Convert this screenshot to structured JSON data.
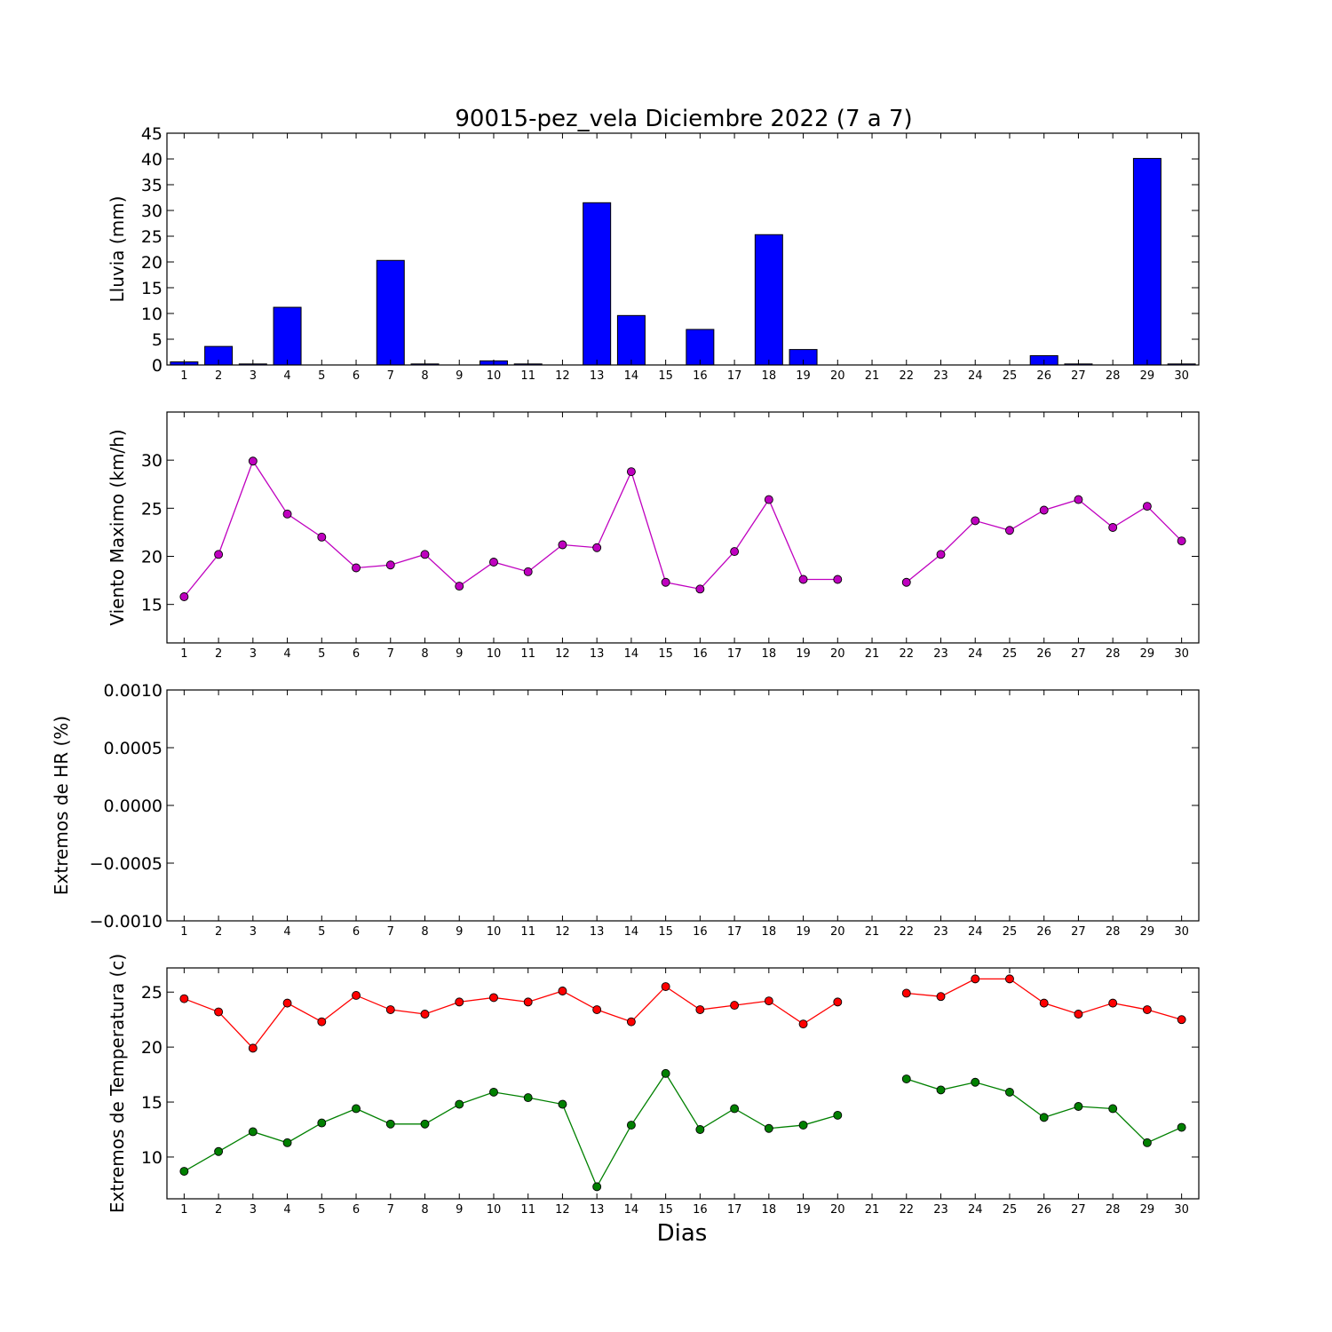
{
  "chart_data": [
    {
      "type": "bar",
      "title": "90015-pez_vela Diciembre 2022  (7 a 7)",
      "ylabel": "Lluvia (mm)",
      "xlabel": "",
      "ylim": [
        0,
        45
      ],
      "yticks": [
        0,
        5,
        10,
        15,
        20,
        25,
        30,
        35,
        40,
        45
      ],
      "xlim": [
        0.5,
        30.5
      ],
      "categories": [
        "1",
        "2",
        "3",
        "4",
        "5",
        "6",
        "7",
        "8",
        "9",
        "10",
        "11",
        "12",
        "13",
        "14",
        "15",
        "16",
        "17",
        "18",
        "19",
        "20",
        "21",
        "22",
        "23",
        "24",
        "25",
        "26",
        "27",
        "28",
        "29",
        "30"
      ],
      "values": [
        0.6,
        3.6,
        0.2,
        11.2,
        0,
        0,
        20.3,
        0.2,
        0,
        0.8,
        0.2,
        0,
        31.5,
        9.6,
        0,
        6.9,
        0,
        25.3,
        3.0,
        0,
        0,
        0,
        0,
        0,
        0,
        1.8,
        0.2,
        0,
        40.1,
        0.2
      ],
      "colors": {
        "bar": "#0000ff",
        "edge": "#000000"
      },
      "grid": false
    },
    {
      "type": "line",
      "ylabel": "Viento Maximo (km/h)",
      "ylim": [
        11,
        35
      ],
      "yticks": [
        15,
        20,
        25,
        30
      ],
      "xlim": [
        0.5,
        30.5
      ],
      "x": [
        1,
        2,
        3,
        4,
        5,
        6,
        7,
        8,
        9,
        10,
        11,
        12,
        13,
        14,
        15,
        16,
        17,
        18,
        19,
        20,
        21,
        22,
        23,
        24,
        25,
        26,
        27,
        28,
        29,
        30
      ],
      "series": [
        {
          "values": [
            15.8,
            20.2,
            29.9,
            24.4,
            22.0,
            18.8,
            19.1,
            20.2,
            16.9,
            19.4,
            18.4,
            21.2,
            20.9,
            28.8,
            17.3,
            16.6,
            20.5,
            25.9,
            17.6,
            17.6,
            null,
            17.3,
            20.2,
            23.7,
            22.7,
            24.8,
            25.9,
            23.0,
            25.2,
            21.6
          ],
          "color": "#bf00bf"
        }
      ],
      "grid": false
    },
    {
      "type": "line",
      "ylabel": "Extremos de HR (%)",
      "ylim": [
        -0.001,
        0.001
      ],
      "yticks": [
        -0.001,
        -0.0005,
        0.0,
        0.0005,
        0.001
      ],
      "ytick_labels": [
        "−0.0010",
        "−0.0005",
        "0.0000",
        "0.0005",
        "0.0010"
      ],
      "xlim": [
        0.5,
        30.5
      ],
      "x": [
        1,
        2,
        3,
        4,
        5,
        6,
        7,
        8,
        9,
        10,
        11,
        12,
        13,
        14,
        15,
        16,
        17,
        18,
        19,
        20,
        21,
        22,
        23,
        24,
        25,
        26,
        27,
        28,
        29,
        30
      ],
      "series": [],
      "grid": false
    },
    {
      "type": "line",
      "ylabel": "Extremos de Temperatura (c)",
      "xlabel": "Dias",
      "ylim": [
        6.2,
        27.2
      ],
      "yticks": [
        10,
        15,
        20,
        25
      ],
      "xlim": [
        0.5,
        30.5
      ],
      "x": [
        1,
        2,
        3,
        4,
        5,
        6,
        7,
        8,
        9,
        10,
        11,
        12,
        13,
        14,
        15,
        16,
        17,
        18,
        19,
        20,
        21,
        22,
        23,
        24,
        25,
        26,
        27,
        28,
        29,
        30
      ],
      "series": [
        {
          "values": [
            24.4,
            23.2,
            19.9,
            24.0,
            22.3,
            24.7,
            23.4,
            23.0,
            24.1,
            24.5,
            24.1,
            25.1,
            23.4,
            22.3,
            25.5,
            23.4,
            23.8,
            24.2,
            22.1,
            24.1,
            null,
            24.9,
            24.6,
            26.2,
            26.2,
            24.0,
            23.0,
            24.0,
            23.4,
            22.5
          ],
          "color": "#ff0000"
        },
        {
          "values": [
            8.7,
            10.5,
            12.3,
            11.3,
            13.1,
            14.4,
            13.0,
            13.0,
            14.8,
            15.9,
            15.4,
            14.8,
            7.3,
            12.9,
            17.6,
            12.5,
            14.4,
            12.6,
            12.9,
            13.8,
            null,
            17.1,
            16.1,
            16.8,
            15.9,
            13.6,
            14.6,
            14.4,
            11.3,
            12.7
          ],
          "color": "#008000"
        }
      ],
      "grid": false
    }
  ]
}
